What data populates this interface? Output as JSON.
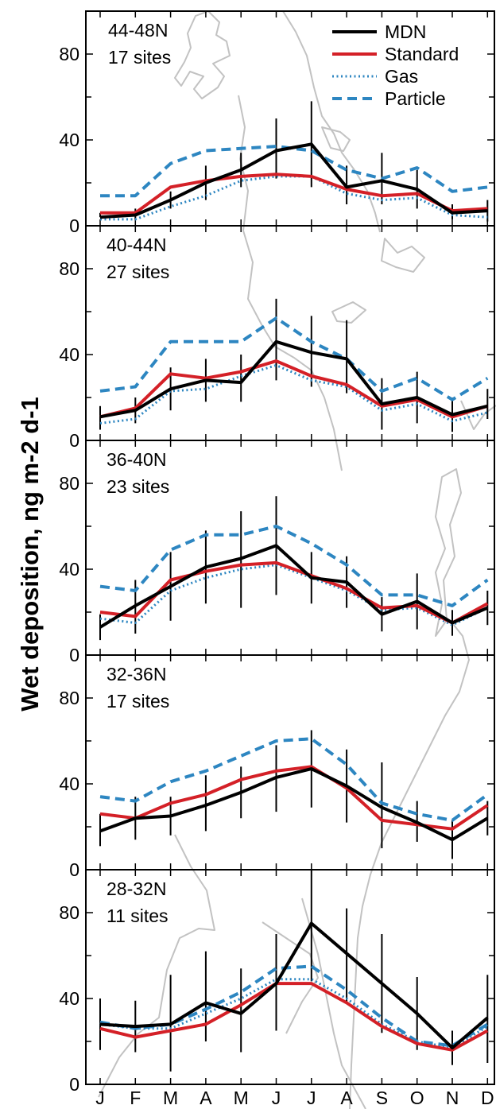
{
  "chart_data": {
    "type": "line",
    "ylabel": "Wet deposition, ng m-2 d-1",
    "ylim": [
      0,
      100
    ],
    "yticks": [
      0,
      40,
      80
    ],
    "categories": [
      "J",
      "F",
      "M",
      "A",
      "M",
      "J",
      "J",
      "A",
      "S",
      "O",
      "N",
      "D"
    ],
    "legend": {
      "placement": "top-right",
      "entries": [
        {
          "name": "MDN",
          "color": "#000000",
          "style": "solid"
        },
        {
          "name": "Standard",
          "color": "#d42027",
          "style": "solid"
        },
        {
          "name": "Gas",
          "color": "#2d86c1",
          "style": "dotted"
        },
        {
          "name": "Particle",
          "color": "#2d86c1",
          "style": "dashed"
        }
      ]
    },
    "panels": [
      {
        "region": "44-48N",
        "sites": "17 sites",
        "series": [
          {
            "name": "MDN",
            "values": [
              4,
              5,
              12,
              20,
              26,
              35,
              38,
              18,
              21,
              17,
              6,
              7
            ],
            "error": [
              [
                4,
                6
              ],
              [
                3,
                8
              ],
              [
                8,
                16
              ],
              [
                12,
                28
              ],
              [
                18,
                34
              ],
              [
                22,
                50
              ],
              [
                18,
                58
              ],
              [
                10,
                28
              ],
              [
                10,
                34
              ],
              [
                8,
                26
              ],
              [
                3,
                10
              ],
              [
                2,
                12
              ]
            ]
          },
          {
            "name": "Standard",
            "values": [
              6,
              6,
              18,
              21,
              23,
              24,
              23,
              17,
              14,
              15,
              7,
              8
            ]
          },
          {
            "name": "Gas",
            "values": [
              3,
              3,
              9,
              14,
              21,
              23,
              23,
              15,
              12,
              13,
              5,
              4
            ]
          },
          {
            "name": "Particle",
            "values": [
              14,
              14,
              29,
              35,
              36,
              37,
              35,
              26,
              22,
              27,
              16,
              18
            ]
          }
        ]
      },
      {
        "region": "40-44N",
        "sites": "27 sites",
        "series": [
          {
            "name": "MDN",
            "values": [
              11,
              14,
              24,
              28,
              27,
              46,
              41,
              38,
              17,
              20,
              12,
              16
            ],
            "error": [
              [
                5,
                16
              ],
              [
                8,
                20
              ],
              [
                14,
                34
              ],
              [
                18,
                38
              ],
              [
                18,
                40
              ],
              [
                28,
                66
              ],
              [
                25,
                58
              ],
              [
                22,
                56
              ],
              [
                5,
                29
              ],
              [
                8,
                32
              ],
              [
                4,
                20
              ],
              [
                10,
                24
              ]
            ]
          },
          {
            "name": "Standard",
            "values": [
              11,
              15,
              31,
              29,
              32,
              37,
              30,
              26,
              16,
              19,
              11,
              16
            ]
          },
          {
            "name": "Gas",
            "values": [
              8,
              10,
              23,
              24,
              30,
              35,
              28,
              25,
              14,
              17,
              9,
              13
            ]
          },
          {
            "name": "Particle",
            "values": [
              23,
              25,
              46,
              46,
              46,
              57,
              46,
              38,
              23,
              29,
              19,
              29
            ]
          }
        ]
      },
      {
        "region": "36-40N",
        "sites": "23 sites",
        "series": [
          {
            "name": "MDN",
            "values": [
              13,
              23,
              32,
              41,
              45,
              51,
              36,
              34,
              19,
              25,
              15,
              22
            ],
            "error": [
              [
                7,
                19
              ],
              [
                10,
                35
              ],
              [
                16,
                48
              ],
              [
                24,
                58
              ],
              [
                22,
                67
              ],
              [
                28,
                74
              ],
              [
                24,
                48
              ],
              [
                22,
                46
              ],
              [
                11,
                27
              ],
              [
                12,
                38
              ],
              [
                9,
                21
              ],
              [
                14,
                30
              ]
            ]
          },
          {
            "name": "Standard",
            "values": [
              20,
              18,
              35,
              39,
              42,
              43,
              37,
              31,
              22,
              23,
              15,
              24
            ]
          },
          {
            "name": "Gas",
            "values": [
              17,
              15,
              30,
              36,
              40,
              42,
              36,
              30,
              21,
              22,
              14,
              22
            ]
          },
          {
            "name": "Particle",
            "values": [
              32,
              30,
              49,
              56,
              56,
              60,
              52,
              42,
              28,
              28,
              23,
              35
            ]
          }
        ]
      },
      {
        "region": "32-36N",
        "sites": "17 sites",
        "series": [
          {
            "name": "MDN",
            "values": [
              18,
              24,
              25,
              30,
              36,
              43,
              47,
              39,
              29,
              22,
              14,
              24
            ],
            "error": [
              [
                11,
                26
              ],
              [
                14,
                34
              ],
              [
                16,
                34
              ],
              [
                18,
                44
              ],
              [
                24,
                48
              ],
              [
                27,
                58
              ],
              [
                29,
                65
              ],
              [
                22,
                56
              ],
              [
                10,
                50
              ],
              [
                13,
                32
              ],
              [
                5,
                23
              ],
              [
                16,
                32
              ]
            ]
          },
          {
            "name": "Standard",
            "values": [
              26,
              24,
              31,
              35,
              42,
              46,
              48,
              38,
              23,
              21,
              19,
              30
            ]
          },
          {
            "name": "Gas",
            "values": [
              26,
              24,
              31,
              35,
              42,
              46,
              48,
              38,
              23,
              21,
              19,
              30
            ]
          },
          {
            "name": "Particle",
            "values": [
              34,
              32,
              41,
              46,
              53,
              60,
              61,
              49,
              31,
              26,
              23,
              35
            ]
          }
        ]
      },
      {
        "region": "28-32N",
        "sites": "11 sites",
        "series": [
          {
            "name": "MDN",
            "values": [
              28,
              27,
              28,
              38,
              33,
              47,
              75,
              61,
              47,
              33,
              17,
              31
            ],
            "error": [
              [
                16,
                40
              ],
              [
                15,
                39
              ],
              [
                6,
                51
              ],
              [
                20,
                62
              ],
              [
                15,
                54
              ],
              [
                25,
                70
              ],
              [
                48,
                100
              ],
              [
                38,
                82
              ],
              [
                24,
                70
              ],
              [
                16,
                50
              ],
              [
                9,
                25
              ],
              [
                10,
                51
              ]
            ]
          },
          {
            "name": "Standard",
            "values": [
              26,
              22,
              25,
              28,
              37,
              47,
              47,
              38,
              27,
              19,
              16,
              25
            ]
          },
          {
            "name": "Gas",
            "values": [
              28,
              26,
              26,
              33,
              40,
              49,
              49,
              40,
              28,
              20,
              17,
              27
            ]
          },
          {
            "name": "Particle",
            "values": [
              29,
              26,
              28,
              35,
              43,
              54,
              55,
              44,
              31,
              20,
              18,
              28
            ]
          }
        ]
      }
    ]
  }
}
